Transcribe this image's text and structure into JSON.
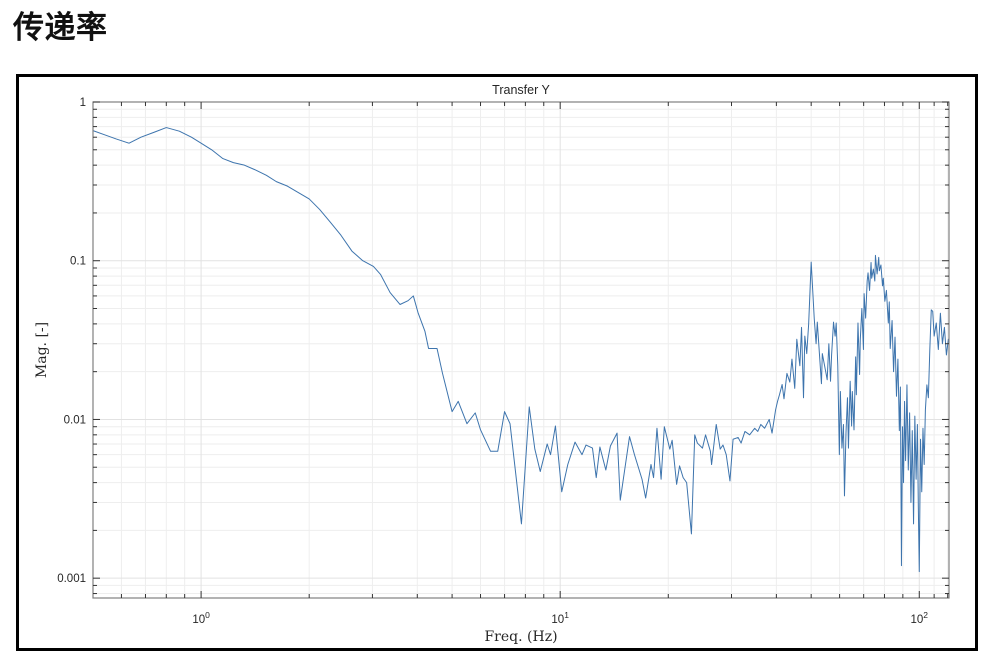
{
  "page": {
    "heading": "传递率"
  },
  "chart_data": {
    "type": "line",
    "title": "Transfer Y",
    "xlabel": "Freq. (Hz)",
    "ylabel": "Mag. [-]",
    "x_scale": "log",
    "y_scale": "log",
    "xlim": [
      0.5,
      121
    ],
    "ylim": [
      0.00075,
      1
    ],
    "grid": "major+minor",
    "legend": "none",
    "line_color": "#3d74ad",
    "axis_color": "#808080",
    "tick_color": "#333333",
    "major_grid_color": "#e2e2e2",
    "minor_grid_color": "#eeeeee",
    "xticks": [
      {
        "value": 1,
        "mantissa": "10",
        "exponent": "0"
      },
      {
        "value": 10,
        "mantissa": "10",
        "exponent": "1"
      },
      {
        "value": 100,
        "mantissa": "10",
        "exponent": "2"
      }
    ],
    "x_minor": [
      0.6,
      0.7,
      0.8,
      0.9,
      2,
      3,
      4,
      5,
      6,
      7,
      8,
      9,
      20,
      30,
      40,
      50,
      60,
      70,
      80,
      90,
      110,
      120
    ],
    "yticks": [
      {
        "value": 1,
        "label": "1"
      },
      {
        "value": 0.1,
        "label": "0.1"
      },
      {
        "value": 0.01,
        "label": "0.01"
      },
      {
        "value": 0.001,
        "label": "0.001"
      }
    ],
    "y_minor": [
      0.0008,
      0.0009,
      0.002,
      0.003,
      0.004,
      0.005,
      0.006,
      0.007,
      0.008,
      0.009,
      0.02,
      0.03,
      0.04,
      0.05,
      0.06,
      0.07,
      0.08,
      0.09,
      0.2,
      0.3,
      0.4,
      0.5,
      0.6,
      0.7,
      0.8,
      0.9
    ],
    "series": [
      {
        "name": "Transfer Y",
        "points": [
          [
            0.5,
            0.66
          ],
          [
            0.54,
            0.62
          ],
          [
            0.58,
            0.585
          ],
          [
            0.63,
            0.55
          ],
          [
            0.68,
            0.6
          ],
          [
            0.74,
            0.645
          ],
          [
            0.8,
            0.69
          ],
          [
            0.87,
            0.655
          ],
          [
            0.94,
            0.6
          ],
          [
            1.0,
            0.55
          ],
          [
            1.07,
            0.5
          ],
          [
            1.15,
            0.44
          ],
          [
            1.23,
            0.415
          ],
          [
            1.32,
            0.4
          ],
          [
            1.41,
            0.375
          ],
          [
            1.52,
            0.345
          ],
          [
            1.62,
            0.315
          ],
          [
            1.74,
            0.295
          ],
          [
            1.86,
            0.27
          ],
          [
            2.0,
            0.245
          ],
          [
            2.14,
            0.21
          ],
          [
            2.29,
            0.175
          ],
          [
            2.45,
            0.145
          ],
          [
            2.63,
            0.115
          ],
          [
            2.82,
            0.1
          ],
          [
            3.02,
            0.092
          ],
          [
            3.16,
            0.082
          ],
          [
            3.36,
            0.063
          ],
          [
            3.58,
            0.053
          ],
          [
            3.77,
            0.056
          ],
          [
            3.9,
            0.06
          ],
          [
            4.02,
            0.047
          ],
          [
            4.2,
            0.036
          ],
          [
            4.3,
            0.028
          ],
          [
            4.54,
            0.028
          ],
          [
            4.7,
            0.0196
          ],
          [
            5.0,
            0.0112
          ],
          [
            5.2,
            0.013
          ],
          [
            5.5,
            0.0094
          ],
          [
            5.8,
            0.011
          ],
          [
            6.0,
            0.0086
          ],
          [
            6.4,
            0.0063
          ],
          [
            6.7,
            0.0063
          ],
          [
            7.0,
            0.0112
          ],
          [
            7.25,
            0.0094
          ],
          [
            7.8,
            0.0022
          ],
          [
            8.2,
            0.012
          ],
          [
            8.5,
            0.0065
          ],
          [
            8.8,
            0.0047
          ],
          [
            9.2,
            0.007
          ],
          [
            9.4,
            0.006
          ],
          [
            9.7,
            0.0091
          ],
          [
            10.1,
            0.0035
          ],
          [
            10.5,
            0.0052
          ],
          [
            11.0,
            0.0072
          ],
          [
            11.5,
            0.006
          ],
          [
            11.8,
            0.0069
          ],
          [
            12.3,
            0.0066
          ],
          [
            12.6,
            0.0043
          ],
          [
            12.9,
            0.0067
          ],
          [
            13.4,
            0.0048
          ],
          [
            13.8,
            0.0068
          ],
          [
            14.4,
            0.0082
          ],
          [
            14.7,
            0.0031
          ],
          [
            15.6,
            0.0078
          ],
          [
            16.1,
            0.006
          ],
          [
            16.9,
            0.0042
          ],
          [
            17.3,
            0.0032
          ],
          [
            17.9,
            0.0052
          ],
          [
            18.2,
            0.0043
          ],
          [
            18.6,
            0.0088
          ],
          [
            19.1,
            0.0042
          ],
          [
            19.5,
            0.009
          ],
          [
            20.2,
            0.0065
          ],
          [
            20.5,
            0.0074
          ],
          [
            21.1,
            0.0039
          ],
          [
            21.5,
            0.0051
          ],
          [
            22.0,
            0.0043
          ],
          [
            22.5,
            0.004
          ],
          [
            23.2,
            0.0019
          ],
          [
            23.7,
            0.008
          ],
          [
            24.1,
            0.0071
          ],
          [
            24.9,
            0.0066
          ],
          [
            25.4,
            0.008
          ],
          [
            26.2,
            0.0063
          ],
          [
            26.4,
            0.0052
          ],
          [
            27.2,
            0.0093
          ],
          [
            27.9,
            0.0065
          ],
          [
            28.4,
            0.0069
          ],
          [
            29.0,
            0.006
          ],
          [
            29.7,
            0.0041
          ],
          [
            30.3,
            0.0075
          ],
          [
            31.3,
            0.0077
          ],
          [
            31.9,
            0.0071
          ],
          [
            32.7,
            0.0084
          ],
          [
            33.7,
            0.008
          ],
          [
            34.8,
            0.0088
          ],
          [
            35.5,
            0.0084
          ],
          [
            36.2,
            0.0093
          ],
          [
            37.1,
            0.0088
          ],
          [
            38.2,
            0.01
          ],
          [
            38.9,
            0.0082
          ],
          [
            39.8,
            0.0115
          ],
          [
            40.3,
            0.013
          ],
          [
            40.8,
            0.0143
          ],
          [
            41.5,
            0.0166
          ],
          [
            42.0,
            0.0135
          ],
          [
            42.8,
            0.0195
          ],
          [
            43.6,
            0.0172
          ],
          [
            44.2,
            0.024
          ],
          [
            45.0,
            0.0157
          ],
          [
            45.6,
            0.032
          ],
          [
            46.5,
            0.0218
          ],
          [
            47.0,
            0.038
          ],
          [
            47.6,
            0.0137
          ],
          [
            48.0,
            0.0335
          ],
          [
            48.6,
            0.026
          ],
          [
            49.2,
            0.04
          ],
          [
            50.0,
            0.098
          ],
          [
            51.0,
            0.043
          ],
          [
            51.6,
            0.03
          ],
          [
            52.0,
            0.041
          ],
          [
            53.4,
            0.0168
          ],
          [
            53.7,
            0.026
          ],
          [
            55.0,
            0.0195
          ],
          [
            55.4,
            0.0178
          ],
          [
            56.0,
            0.03
          ],
          [
            56.6,
            0.0174
          ],
          [
            57.0,
            0.0256
          ],
          [
            57.7,
            0.041
          ],
          [
            58.3,
            0.0335
          ],
          [
            58.7,
            0.0405
          ],
          [
            59.3,
            0.0218
          ],
          [
            59.9,
            0.006
          ],
          [
            60.3,
            0.015
          ],
          [
            60.9,
            0.0066
          ],
          [
            61.5,
            0.0093
          ],
          [
            61.9,
            0.0033
          ],
          [
            62.5,
            0.0082
          ],
          [
            63.1,
            0.0137
          ],
          [
            63.5,
            0.0066
          ],
          [
            64.2,
            0.0174
          ],
          [
            64.8,
            0.0091
          ],
          [
            65.1,
            0.015
          ],
          [
            65.8,
            0.0086
          ],
          [
            66.5,
            0.0248
          ],
          [
            66.8,
            0.0143
          ],
          [
            67.5,
            0.0405
          ],
          [
            68.2,
            0.0192
          ],
          [
            68.5,
            0.0317
          ],
          [
            69.2,
            0.05
          ],
          [
            69.9,
            0.0276
          ],
          [
            70.2,
            0.062
          ],
          [
            70.9,
            0.0435
          ],
          [
            71.6,
            0.0745
          ],
          [
            72.0,
            0.0839
          ],
          [
            72.7,
            0.065
          ],
          [
            73.4,
            0.0975
          ],
          [
            73.7,
            0.0775
          ],
          [
            74.5,
            0.0885
          ],
          [
            75.2,
            0.0745
          ],
          [
            75.5,
            0.108
          ],
          [
            76.3,
            0.0826
          ],
          [
            77.1,
            0.105
          ],
          [
            77.4,
            0.0865
          ],
          [
            78.2,
            0.094
          ],
          [
            79.0,
            0.0695
          ],
          [
            79.4,
            0.0775
          ],
          [
            80.2,
            0.0555
          ],
          [
            81.0,
            0.065
          ],
          [
            82.0,
            0.0405
          ],
          [
            82.5,
            0.055
          ],
          [
            83.0,
            0.028
          ],
          [
            84.0,
            0.042
          ],
          [
            84.8,
            0.02
          ],
          [
            85.6,
            0.033
          ],
          [
            86.4,
            0.014
          ],
          [
            87.2,
            0.024
          ],
          [
            88.0,
            0.0085
          ],
          [
            88.6,
            0.016
          ],
          [
            89.2,
            0.0012
          ],
          [
            89.8,
            0.009
          ],
          [
            90.4,
            0.004
          ],
          [
            91.0,
            0.013
          ],
          [
            91.6,
            0.0055
          ],
          [
            92.4,
            0.0165
          ],
          [
            93.2,
            0.0048
          ],
          [
            94.0,
            0.011
          ],
          [
            94.8,
            0.003
          ],
          [
            95.6,
            0.0085
          ],
          [
            96.4,
            0.0022
          ],
          [
            97.2,
            0.0105
          ],
          [
            98.0,
            0.0042
          ],
          [
            98.8,
            0.0093
          ],
          [
            99.4,
            0.0028
          ],
          [
            100.0,
            0.0011
          ],
          [
            100.8,
            0.0075
          ],
          [
            101.6,
            0.0035
          ],
          [
            102.4,
            0.0088
          ],
          [
            103.2,
            0.0052
          ],
          [
            104.0,
            0.0115
          ],
          [
            105.0,
            0.0165
          ],
          [
            106.0,
            0.0137
          ],
          [
            107.0,
            0.0276
          ],
          [
            108.0,
            0.049
          ],
          [
            109.0,
            0.048
          ],
          [
            110.0,
            0.0335
          ],
          [
            111.5,
            0.0405
          ],
          [
            113.0,
            0.0276
          ],
          [
            114.5,
            0.0467
          ],
          [
            116.0,
            0.03
          ],
          [
            117.5,
            0.038
          ],
          [
            119.0,
            0.0255
          ],
          [
            120.5,
            0.032
          ]
        ]
      }
    ]
  }
}
